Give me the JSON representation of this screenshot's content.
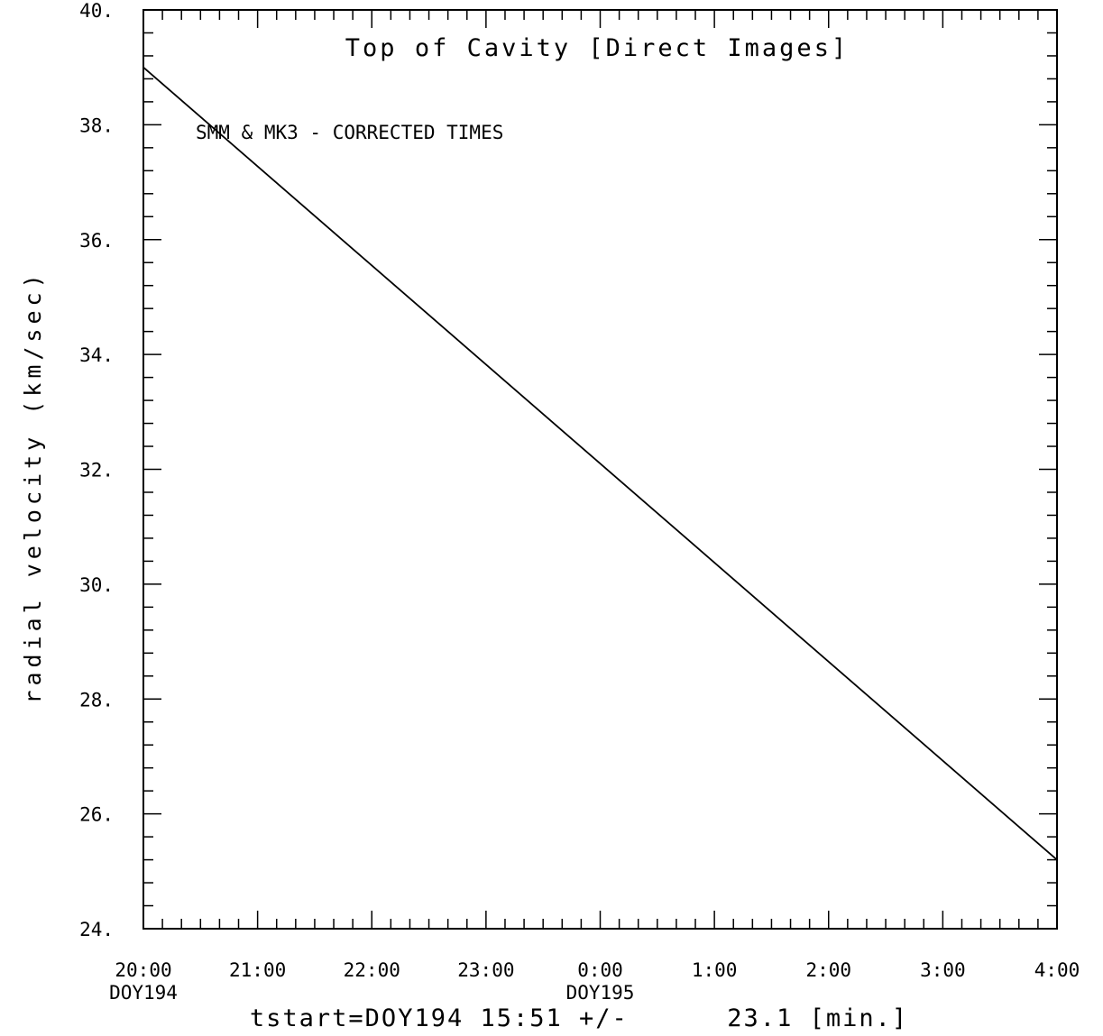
{
  "chart_data": {
    "type": "line",
    "title": "Top of Cavity  [Direct Images]",
    "annotation": "SMM & MK3 - CORRECTED TIMES",
    "ylabel": "radial velocity (km/sec)",
    "xlabel": "",
    "footer": "tstart=DOY194 15:51 +/-      23.1 [min.]",
    "xlim": [
      "DOY194 20:00",
      "DOY195 04:00"
    ],
    "ylim": [
      24,
      40
    ],
    "x_ticks": [
      {
        "label": "20:00",
        "sub": "DOY194"
      },
      {
        "label": "21:00",
        "sub": ""
      },
      {
        "label": "22:00",
        "sub": ""
      },
      {
        "label": "23:00",
        "sub": ""
      },
      {
        "label": "0:00",
        "sub": "DOY195"
      },
      {
        "label": "1:00",
        "sub": ""
      },
      {
        "label": "2:00",
        "sub": ""
      },
      {
        "label": "3:00",
        "sub": ""
      },
      {
        "label": "4:00",
        "sub": ""
      }
    ],
    "y_ticks": [
      "24.",
      "26.",
      "28.",
      "30.",
      "32.",
      "34.",
      "36.",
      "38.",
      "40."
    ],
    "grid": false,
    "series": [
      {
        "x": [
          "DOY194 20:00",
          "DOY195 04:00"
        ],
        "y": [
          39.0,
          25.2
        ]
      }
    ]
  }
}
